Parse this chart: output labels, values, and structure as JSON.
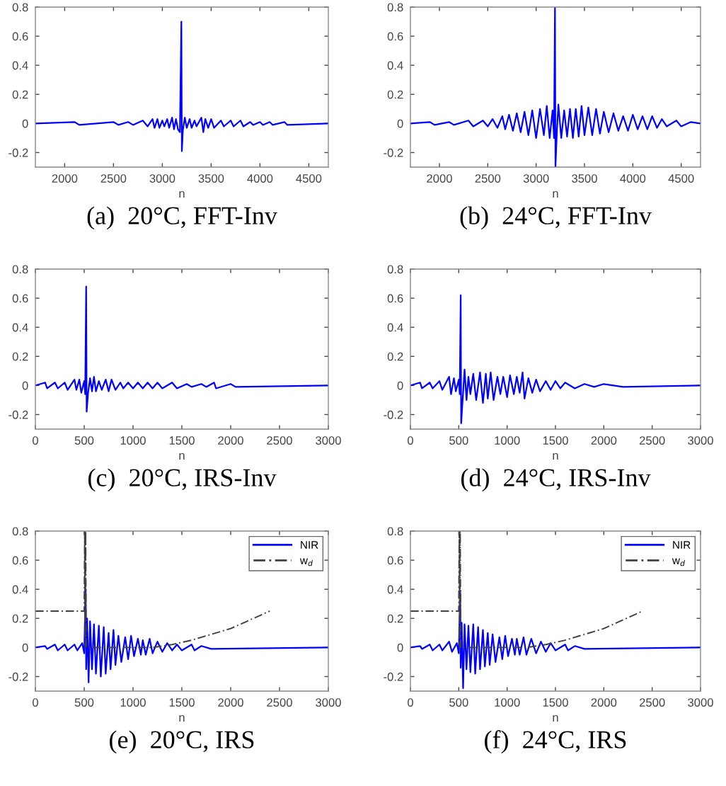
{
  "chart_data": [
    {
      "type": "line",
      "title": "(a)  20°C, FFT-Inv",
      "xlabel": "n",
      "xlim": [
        1700,
        4700
      ],
      "ylim": [
        -0.3,
        0.8
      ],
      "xticks": [
        2000,
        2500,
        3000,
        3500,
        4000,
        4500
      ],
      "yticks": [
        -0.2,
        0,
        0.2,
        0.4,
        0.6,
        0.8
      ],
      "legend": false,
      "series": [
        {
          "color": "#0000ff",
          "line_style": "solid",
          "x": [
            1700,
            2100,
            2150,
            2500,
            2550,
            2650,
            2700,
            2800,
            2850,
            2900,
            2920,
            2950,
            2970,
            3000,
            3020,
            3050,
            3070,
            3100,
            3120,
            3140,
            3160,
            3180,
            3195,
            3200,
            3210,
            3230,
            3250,
            3280,
            3300,
            3330,
            3350,
            3400,
            3420,
            3440,
            3470,
            3500,
            3530,
            3600,
            3630,
            3700,
            3730,
            3800,
            3830,
            3900,
            3930,
            4000,
            4030,
            4100,
            4130,
            4250,
            4280,
            4700
          ],
          "values": [
            0,
            0.01,
            -0.01,
            0.01,
            -0.01,
            0.01,
            -0.01,
            0.02,
            -0.02,
            0.03,
            -0.03,
            0.03,
            -0.03,
            0.02,
            -0.02,
            0.03,
            -0.03,
            0.04,
            -0.04,
            0.03,
            -0.04,
            -0.06,
            0.7,
            -0.19,
            -0.05,
            0.04,
            -0.03,
            0.03,
            -0.03,
            0.02,
            -0.02,
            0.04,
            -0.06,
            0.03,
            -0.03,
            0.03,
            -0.03,
            0.02,
            -0.02,
            0.02,
            -0.02,
            0.02,
            -0.02,
            0.01,
            -0.01,
            0.01,
            -0.01,
            0.01,
            -0.01,
            0.01,
            -0.01,
            0
          ]
        }
      ]
    },
    {
      "type": "line",
      "title": "(b)  24°C, FFT-Inv",
      "xlabel": "n",
      "xlim": [
        1700,
        4700
      ],
      "ylim": [
        -0.3,
        0.8
      ],
      "xticks": [
        2000,
        2500,
        3000,
        3500,
        4000,
        4500
      ],
      "yticks": [
        -0.2,
        0,
        0.2,
        0.4,
        0.6,
        0.8
      ],
      "legend": false,
      "series": [
        {
          "color": "#0000ff",
          "line_style": "solid",
          "x": [
            1700,
            1900,
            1950,
            2100,
            2150,
            2300,
            2350,
            2450,
            2500,
            2550,
            2600,
            2650,
            2680,
            2720,
            2760,
            2800,
            2840,
            2880,
            2920,
            2960,
            3000,
            3040,
            3080,
            3110,
            3140,
            3170,
            3185,
            3195,
            3200,
            3215,
            3230,
            3260,
            3290,
            3320,
            3350,
            3380,
            3410,
            3440,
            3470,
            3500,
            3540,
            3580,
            3620,
            3660,
            3700,
            3750,
            3800,
            3850,
            3900,
            3950,
            4000,
            4050,
            4100,
            4150,
            4200,
            4250,
            4300,
            4350,
            4450,
            4500,
            4600,
            4700
          ],
          "values": [
            0,
            0.01,
            -0.01,
            0.01,
            -0.01,
            0.02,
            -0.02,
            0.02,
            -0.02,
            0.03,
            -0.03,
            0.05,
            -0.04,
            0.06,
            -0.05,
            0.07,
            -0.06,
            0.08,
            -0.08,
            0.09,
            -0.1,
            0.1,
            -0.08,
            0.12,
            -0.1,
            0.09,
            -0.1,
            0.8,
            -0.3,
            -0.05,
            0.13,
            -0.1,
            0.09,
            -0.09,
            0.1,
            -0.1,
            0.1,
            -0.09,
            0.12,
            -0.08,
            0.11,
            -0.08,
            0.1,
            -0.07,
            0.08,
            -0.06,
            0.07,
            -0.05,
            0.05,
            -0.05,
            0.06,
            -0.04,
            0.05,
            -0.04,
            0.05,
            -0.03,
            0.03,
            -0.02,
            0.02,
            -0.02,
            0.01,
            0
          ]
        }
      ]
    },
    {
      "type": "line",
      "title": "(c)  20°C, IRS-Inv",
      "xlabel": "n",
      "xlim": [
        0,
        3000
      ],
      "ylim": [
        -0.3,
        0.8
      ],
      "xticks": [
        0,
        500,
        1000,
        1500,
        2000,
        2500,
        3000
      ],
      "yticks": [
        -0.2,
        0,
        0.2,
        0.4,
        0.6,
        0.8
      ],
      "legend": false,
      "series": [
        {
          "color": "#0000ff",
          "line_style": "solid",
          "x": [
            0,
            100,
            120,
            200,
            230,
            300,
            330,
            400,
            420,
            450,
            470,
            500,
            510,
            520,
            525,
            540,
            560,
            580,
            600,
            620,
            650,
            680,
            720,
            750,
            780,
            820,
            870,
            900,
            950,
            1000,
            1050,
            1100,
            1150,
            1200,
            1250,
            1300,
            1400,
            1450,
            1550,
            1600,
            1700,
            1750,
            1830,
            1850,
            2000,
            2050,
            3000
          ],
          "values": [
            0,
            0.02,
            -0.02,
            0.02,
            -0.02,
            0.02,
            -0.03,
            0.04,
            -0.03,
            0.04,
            -0.05,
            0.03,
            -0.06,
            0.68,
            -0.18,
            -0.05,
            0.05,
            -0.04,
            0.06,
            -0.04,
            0.03,
            -0.03,
            0.04,
            -0.04,
            0.04,
            -0.03,
            0.02,
            -0.02,
            0.02,
            -0.02,
            0.02,
            -0.02,
            0.02,
            -0.02,
            0.02,
            -0.02,
            0.02,
            -0.02,
            0.01,
            -0.01,
            0.01,
            -0.01,
            0.02,
            -0.02,
            0.01,
            -0.01,
            0
          ]
        }
      ]
    },
    {
      "type": "line",
      "title": "(d)  24°C, IRS-Inv",
      "xlabel": "n",
      "xlim": [
        0,
        3000
      ],
      "ylim": [
        -0.3,
        0.8
      ],
      "xticks": [
        0,
        500,
        1000,
        1500,
        2000,
        2500,
        3000
      ],
      "yticks": [
        -0.2,
        0,
        0.2,
        0.4,
        0.6,
        0.8
      ],
      "legend": false,
      "series": [
        {
          "color": "#0000ff",
          "line_style": "solid",
          "x": [
            0,
            100,
            120,
            200,
            230,
            300,
            330,
            400,
            420,
            450,
            470,
            500,
            510,
            520,
            525,
            540,
            560,
            580,
            600,
            620,
            650,
            680,
            720,
            750,
            780,
            800,
            830,
            860,
            900,
            930,
            960,
            1000,
            1030,
            1070,
            1100,
            1130,
            1160,
            1180,
            1220,
            1260,
            1300,
            1340,
            1400,
            1450,
            1500,
            1550,
            1600,
            1700,
            1800,
            1900,
            2000,
            2200,
            3000
          ],
          "values": [
            0,
            0.02,
            -0.02,
            0.02,
            -0.02,
            0.03,
            -0.03,
            0.06,
            -0.06,
            0.05,
            -0.04,
            0.04,
            -0.06,
            0.62,
            -0.26,
            -0.1,
            0.11,
            -0.1,
            0.06,
            -0.06,
            0.08,
            -0.1,
            0.09,
            -0.12,
            0.08,
            -0.09,
            0.09,
            -0.1,
            0.06,
            -0.06,
            0.06,
            -0.08,
            0.07,
            -0.06,
            0.06,
            -0.05,
            0.09,
            -0.09,
            0.05,
            -0.05,
            0.04,
            -0.04,
            0.03,
            -0.03,
            0.03,
            -0.02,
            0.02,
            -0.02,
            0.01,
            -0.01,
            0.01,
            -0.01,
            0
          ]
        }
      ]
    },
    {
      "type": "line",
      "title": "(e)  20°C, IRS",
      "xlabel": "n",
      "xlim": [
        0,
        3000
      ],
      "ylim": [
        -0.3,
        0.8
      ],
      "xticks": [
        0,
        500,
        1000,
        1500,
        2000,
        2500,
        3000
      ],
      "yticks": [
        -0.2,
        0,
        0.2,
        0.4,
        0.6,
        0.8
      ],
      "legend": "top right",
      "series": [
        {
          "name": "NIR",
          "color": "#0000ff",
          "line_style": "solid",
          "x": [
            0,
            100,
            120,
            200,
            230,
            300,
            330,
            400,
            430,
            480,
            500,
            515,
            520,
            530,
            545,
            560,
            580,
            600,
            620,
            650,
            670,
            700,
            720,
            750,
            770,
            800,
            820,
            850,
            880,
            920,
            950,
            980,
            1010,
            1050,
            1080,
            1100,
            1130,
            1170,
            1200,
            1250,
            1300,
            1350,
            1400,
            1450,
            1500,
            1600,
            1630,
            1700,
            1800,
            3000
          ],
          "values": [
            0,
            0.01,
            -0.01,
            0.02,
            -0.02,
            0.02,
            -0.02,
            0.02,
            -0.02,
            0.03,
            -0.04,
            0.4,
            -0.15,
            0.2,
            -0.24,
            0.18,
            -0.15,
            0.16,
            -0.18,
            0.15,
            -0.2,
            0.14,
            -0.18,
            0.1,
            -0.15,
            0.12,
            -0.12,
            0.08,
            -0.1,
            0.07,
            -0.08,
            0.08,
            -0.06,
            0.06,
            -0.05,
            0.05,
            -0.05,
            0.06,
            -0.04,
            0.04,
            -0.03,
            0.03,
            -0.02,
            0.02,
            -0.02,
            0.02,
            -0.02,
            0.01,
            -0.01,
            0
          ]
        },
        {
          "name": "w$_{d}$",
          "color": "#404040",
          "line_style": "dashed",
          "x": [
            0,
            500,
            505,
            510,
            515,
            520,
            525,
            1200,
            1400,
            1600,
            1800,
            2000,
            2200,
            2400
          ],
          "values": [
            0.25,
            0.25,
            0.8,
            0,
            0.8,
            0,
            0,
            0,
            0.02,
            0.05,
            0.09,
            0.13,
            0.19,
            0.25
          ]
        }
      ]
    },
    {
      "type": "line",
      "title": "(f)  24°C, IRS",
      "xlabel": "n",
      "xlim": [
        0,
        3000
      ],
      "ylim": [
        -0.3,
        0.8
      ],
      "xticks": [
        0,
        500,
        1000,
        1500,
        2000,
        2500,
        3000
      ],
      "yticks": [
        -0.2,
        0,
        0.2,
        0.4,
        0.6,
        0.8
      ],
      "legend": "top right",
      "series": [
        {
          "name": "NIR",
          "color": "#0000ff",
          "line_style": "solid",
          "x": [
            0,
            100,
            120,
            200,
            230,
            300,
            330,
            400,
            430,
            480,
            500,
            515,
            520,
            530,
            545,
            560,
            580,
            600,
            620,
            650,
            670,
            700,
            720,
            750,
            770,
            800,
            820,
            850,
            880,
            920,
            950,
            980,
            1010,
            1050,
            1080,
            1100,
            1130,
            1170,
            1200,
            1250,
            1300,
            1350,
            1400,
            1450,
            1500,
            1600,
            1630,
            1700,
            1800,
            3000
          ],
          "values": [
            0,
            0.01,
            -0.01,
            0.02,
            -0.02,
            0.02,
            -0.02,
            0.04,
            -0.03,
            0.03,
            -0.04,
            0.39,
            -0.14,
            0.17,
            -0.28,
            0.16,
            -0.15,
            0.15,
            -0.17,
            0.16,
            -0.18,
            0.14,
            -0.15,
            0.12,
            -0.13,
            0.1,
            -0.12,
            0.09,
            -0.1,
            0.07,
            -0.08,
            0.08,
            -0.06,
            0.06,
            -0.05,
            0.06,
            -0.05,
            0.07,
            -0.05,
            0.06,
            -0.04,
            0.04,
            -0.03,
            0.03,
            -0.02,
            0.02,
            -0.02,
            0.01,
            -0.01,
            0
          ]
        },
        {
          "name": "w$_{d}$",
          "color": "#404040",
          "line_style": "dashed",
          "x": [
            0,
            500,
            505,
            510,
            515,
            520,
            525,
            1200,
            1400,
            1600,
            1800,
            2000,
            2200,
            2400
          ],
          "values": [
            0.25,
            0.25,
            0.8,
            0,
            0.8,
            0,
            0,
            0,
            0.02,
            0.05,
            0.09,
            0.13,
            0.19,
            0.25
          ]
        }
      ]
    }
  ]
}
